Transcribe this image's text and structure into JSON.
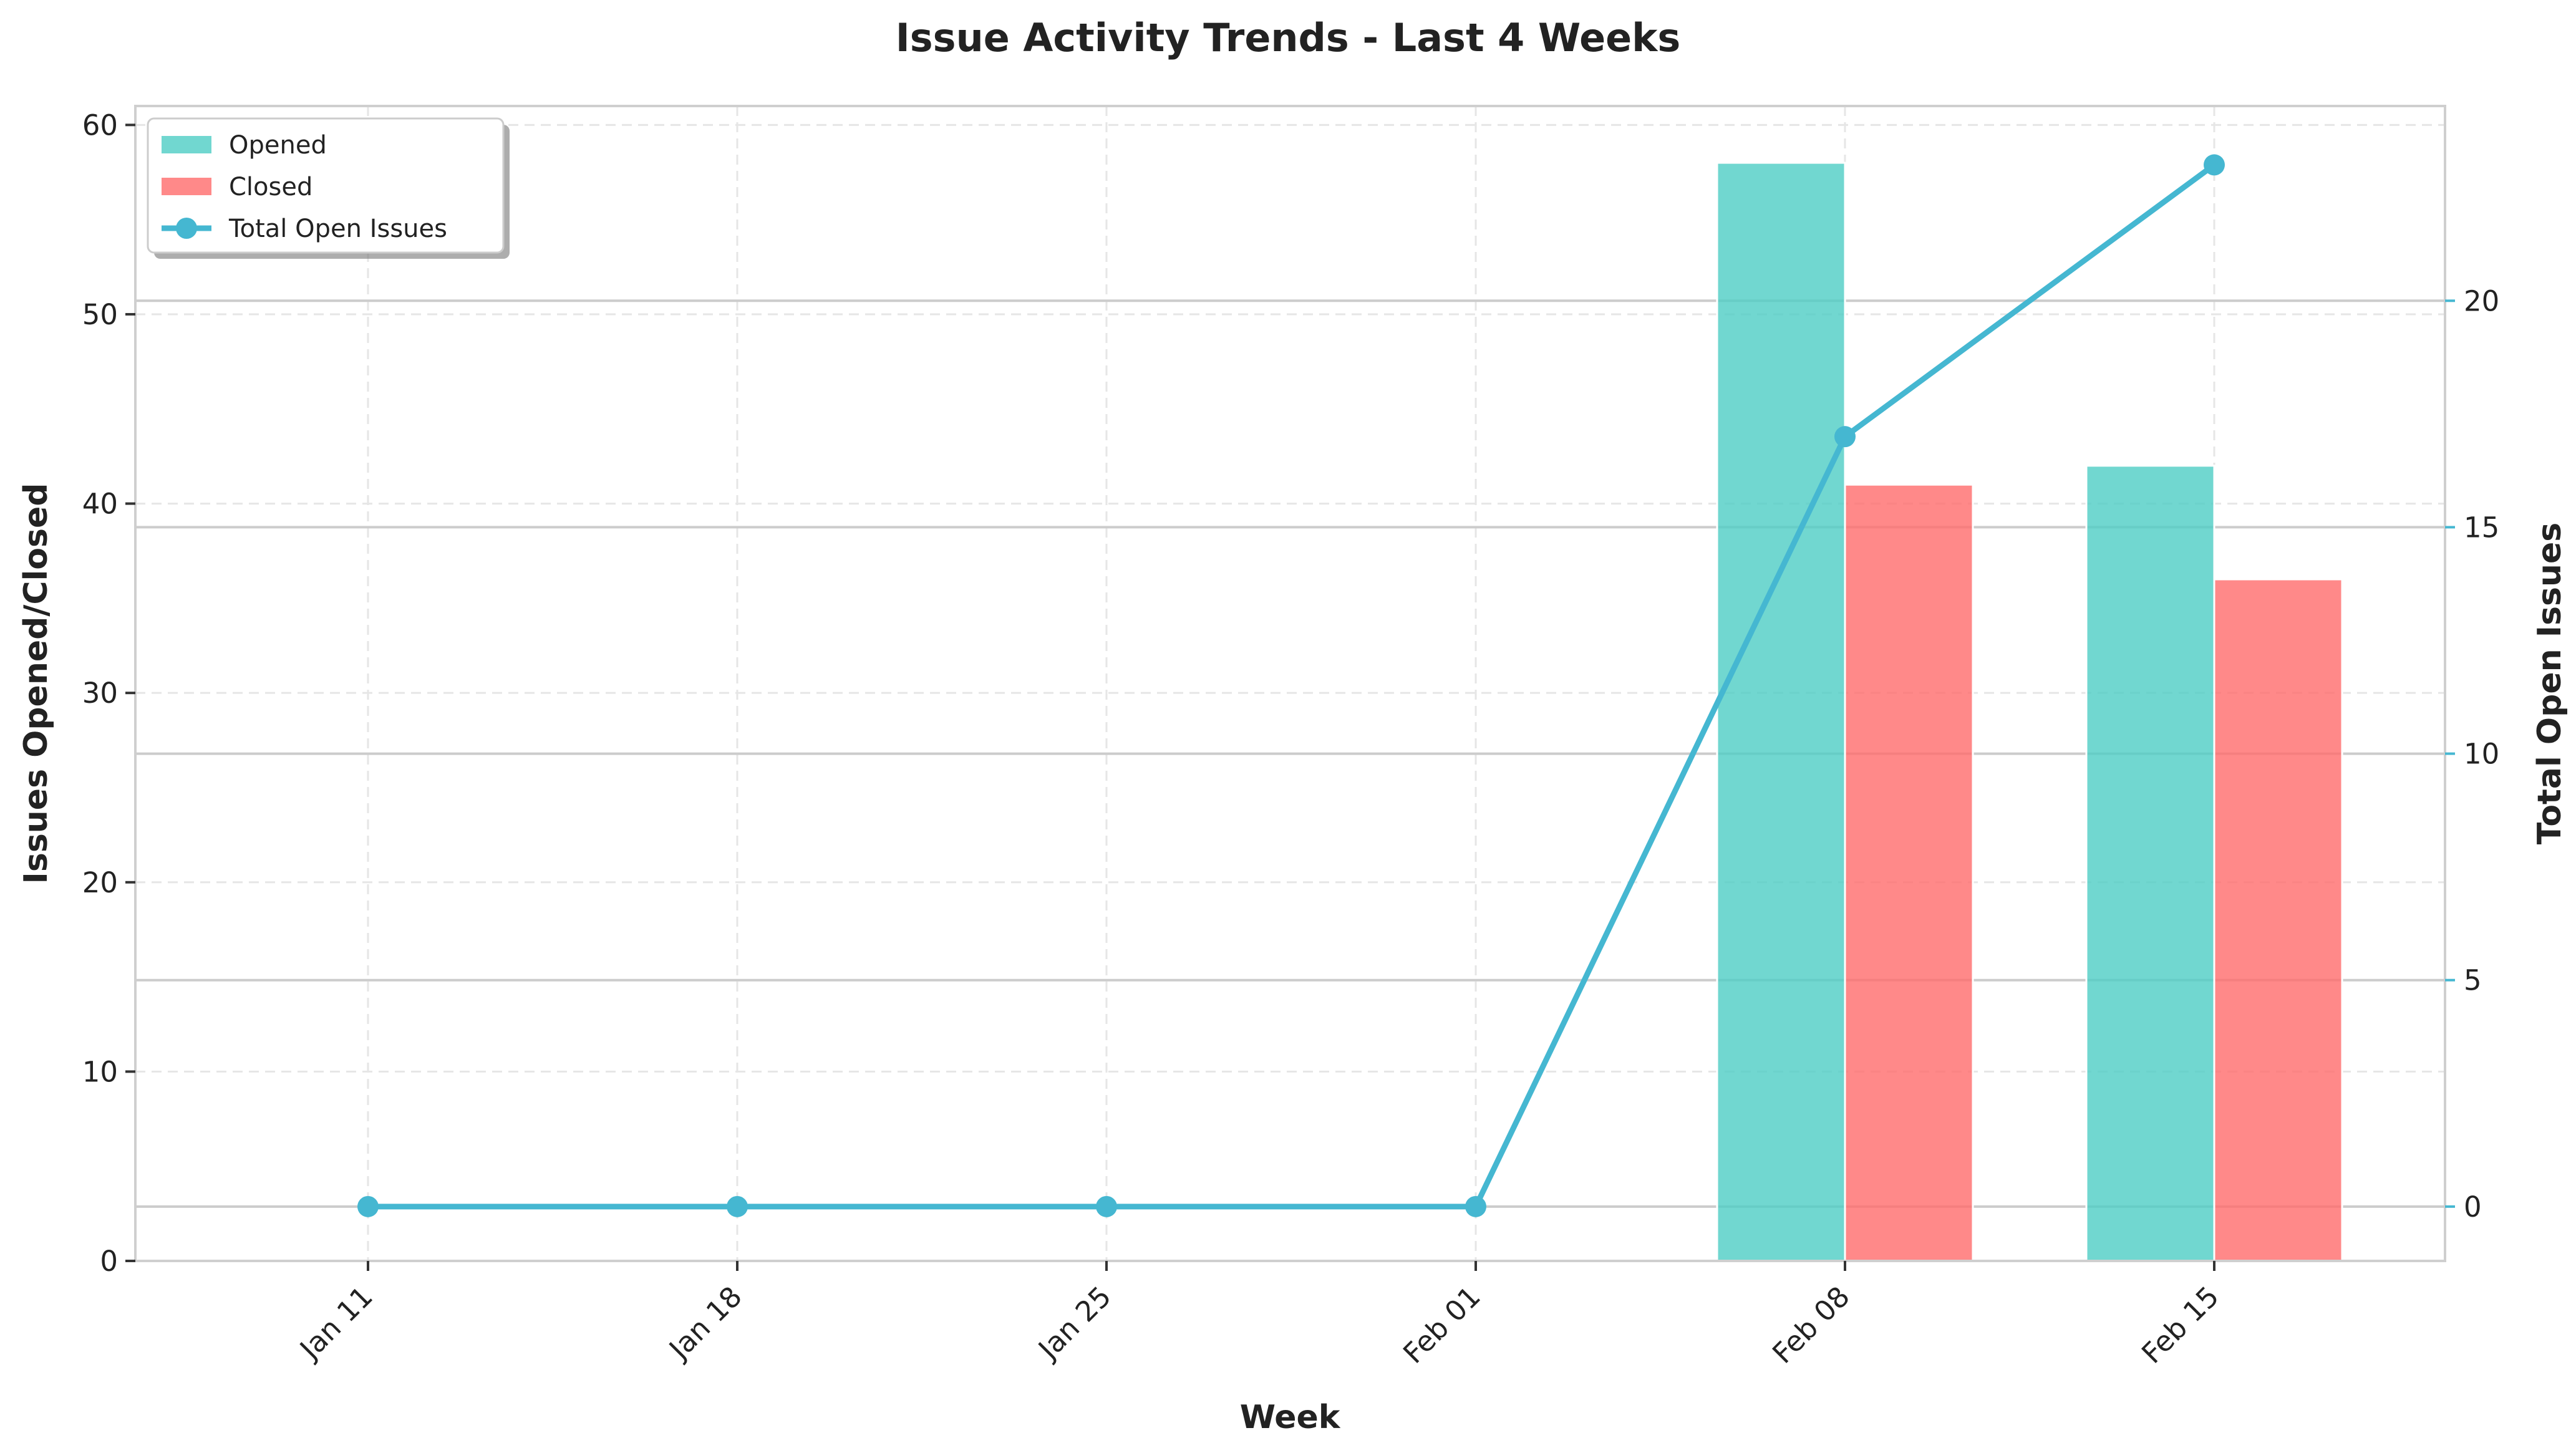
{
  "chart_data": {
    "type": "bar",
    "title": "Issue Activity Trends - Last 4 Weeks",
    "xlabel": "Week",
    "ylabel": "Issues Opened/Closed",
    "y2label": "Total Open Issues",
    "categories": [
      "Jan 11",
      "Jan 18",
      "Jan 25",
      "Feb 01",
      "Feb 08",
      "Feb 15"
    ],
    "series": [
      {
        "name": "Opened",
        "kind": "bar",
        "axis": "left",
        "color": "#4ecdc4",
        "values": [
          0,
          0,
          0,
          0,
          58,
          42
        ]
      },
      {
        "name": "Closed",
        "kind": "bar",
        "axis": "left",
        "color": "#ff6b6b",
        "values": [
          0,
          0,
          0,
          0,
          41,
          36
        ]
      },
      {
        "name": "Total Open Issues",
        "kind": "line",
        "axis": "right",
        "color": "#45b7d1",
        "values": [
          0,
          0,
          0,
          0,
          17,
          23
        ]
      }
    ],
    "ylim": [
      0,
      61
    ],
    "yticks": [
      0,
      10,
      20,
      30,
      40,
      50,
      60
    ],
    "y2lim": [
      -1.2,
      24.3
    ],
    "y2ticks": [
      0,
      5,
      10,
      15,
      20
    ],
    "grid": true,
    "legend_position": "top-left"
  }
}
